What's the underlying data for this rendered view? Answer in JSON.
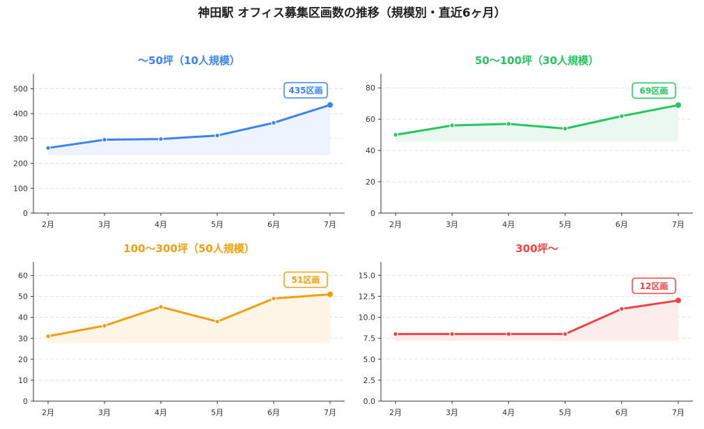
{
  "title": "神田駅 オフィス募集区画数の推移（規模別・直近6ヶ月）",
  "chart_data": [
    {
      "type": "line",
      "title": "〜50坪（10人規模）",
      "color": "#3b82f6",
      "fill_color": "#eef4ff",
      "categories": [
        "2月",
        "3月",
        "4月",
        "5月",
        "6月",
        "7月"
      ],
      "values": [
        262,
        295,
        298,
        312,
        363,
        435
      ],
      "ylim": [
        0,
        560
      ],
      "yticks": [
        0,
        100,
        200,
        300,
        400,
        500
      ],
      "ytick_labels": [
        "0",
        "100",
        "200",
        "300",
        "400",
        "500"
      ],
      "callout": "435区画",
      "grid": true
    },
    {
      "type": "line",
      "title": "50〜100坪（30人規模）",
      "color": "#22c55e",
      "fill_color": "#eaf8ef",
      "categories": [
        "2月",
        "3月",
        "4月",
        "5月",
        "6月",
        "7月"
      ],
      "values": [
        50,
        56,
        57,
        54,
        62,
        69
      ],
      "ylim": [
        0,
        89
      ],
      "yticks": [
        0,
        20,
        40,
        60,
        80
      ],
      "ytick_labels": [
        "0",
        "20",
        "40",
        "60",
        "80"
      ],
      "callout": "69区画",
      "grid": true
    },
    {
      "type": "line",
      "title": "100〜300坪（50人規模）",
      "color": "#f59e0b",
      "fill_color": "#fef5e6",
      "categories": [
        "2月",
        "3月",
        "4月",
        "5月",
        "6月",
        "7月"
      ],
      "values": [
        31,
        36,
        45,
        38,
        49,
        51
      ],
      "ylim": [
        0,
        66.5
      ],
      "yticks": [
        0,
        10,
        20,
        30,
        40,
        50,
        60
      ],
      "ytick_labels": [
        "0",
        "10",
        "20",
        "30",
        "40",
        "50",
        "60"
      ],
      "callout": "51区画",
      "grid": true
    },
    {
      "type": "line",
      "title": "300坪〜",
      "color": "#ef4444",
      "fill_color": "#fdecec",
      "categories": [
        "2月",
        "3月",
        "4月",
        "5月",
        "6月",
        "7月"
      ],
      "values": [
        8,
        8,
        8,
        8,
        11,
        12
      ],
      "ylim": [
        0,
        16.6
      ],
      "yticks": [
        0,
        2.5,
        5,
        7.5,
        10,
        12.5,
        15
      ],
      "ytick_labels": [
        "0.0",
        "2.5",
        "5.0",
        "7.5",
        "10.0",
        "12.5",
        "15.0"
      ],
      "callout": "12区画",
      "grid": true
    }
  ]
}
